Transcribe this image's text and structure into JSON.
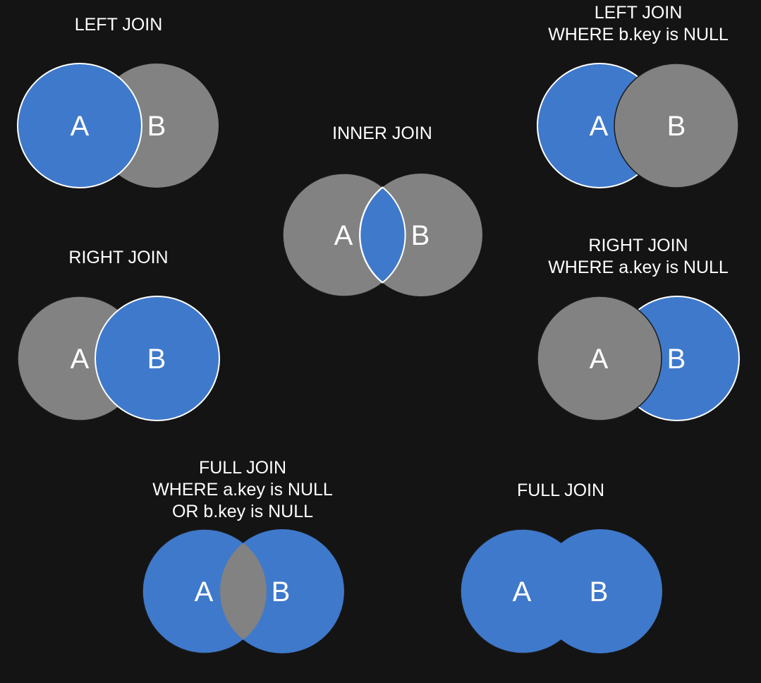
{
  "colors": {
    "background": "#141414",
    "included": "#3f79cb",
    "excluded": "#828282",
    "text": "#ffffff",
    "outline_light": "#ffffff",
    "outline_dark": "#1a1a1a"
  },
  "diagrams": {
    "left_join": {
      "title_lines": [
        "LEFT JOIN"
      ],
      "set_a": "A",
      "set_b": "B"
    },
    "inner_join": {
      "title_lines": [
        "INNER JOIN"
      ],
      "set_a": "A",
      "set_b": "B"
    },
    "left_excluding_join": {
      "title_lines": [
        "LEFT JOIN",
        "WHERE b.key is NULL"
      ],
      "set_a": "A",
      "set_b": "B"
    },
    "right_join": {
      "title_lines": [
        "RIGHT JOIN"
      ],
      "set_a": "A",
      "set_b": "B"
    },
    "right_excluding_join": {
      "title_lines": [
        "RIGHT JOIN",
        "WHERE a.key is NULL"
      ],
      "set_a": "A",
      "set_b": "B"
    },
    "full_outer_excluding_join": {
      "title_lines": [
        "FULL JOIN",
        "WHERE a.key is NULL",
        "OR b.key is NULL"
      ],
      "set_a": "A",
      "set_b": "B"
    },
    "full_join": {
      "title_lines": [
        "FULL JOIN"
      ],
      "set_a": "A",
      "set_b": "B"
    }
  }
}
